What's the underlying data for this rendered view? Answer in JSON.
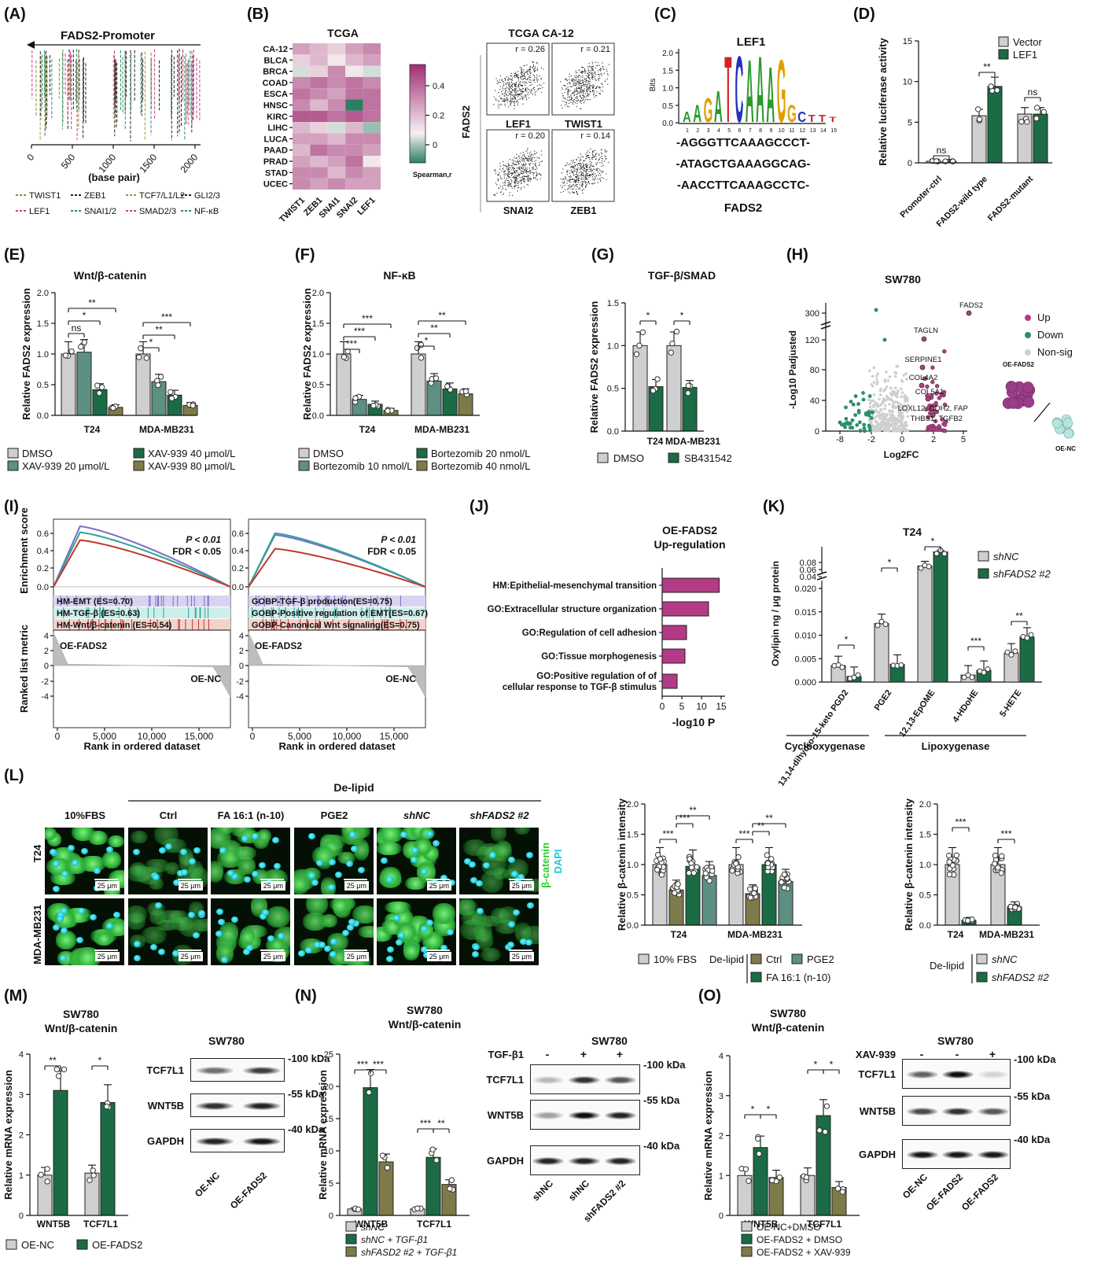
{
  "panels": {
    "A": {
      "letter": "(A)",
      "title": "FADS2-Promoter",
      "xlabel": "(base pair)",
      "ticks": [
        "0",
        "500",
        "1000",
        "1500",
        "2000"
      ],
      "legend": [
        "TWIST1",
        "ZEB1",
        "TCF7/L1/L2",
        "GLI2/3",
        "LEF1",
        "SNAI1/2",
        "SMAD2/3",
        "NF-κB"
      ],
      "legend_colors": [
        "#8a8a3a",
        "#222222",
        "#9b9b3b",
        "#222222",
        "#cc3d8a",
        "#2a8f6b",
        "#cc3d8a",
        "#2a8f6b"
      ]
    },
    "B": {
      "letter": "(B)",
      "heat_title": "TCGA",
      "rows": [
        "CA-12",
        "BLCA",
        "BRCA",
        "COAD",
        "ESCA",
        "HNSC",
        "KIRC",
        "LIHC",
        "LUCA",
        "PAAD",
        "PRAD",
        "STAD",
        "UCEC"
      ],
      "cols": [
        "TWIST1",
        "ZEB1",
        "SNAI1",
        "SNAI2",
        "LEF1"
      ],
      "scale_ticks": [
        "0.4",
        "0.2",
        "0"
      ],
      "scale_label": "Spearman,r",
      "scatter_title": "TCGA CA-12",
      "scatter_ylabel": "FADS2",
      "scatter": [
        {
          "r": "r = 0.26",
          "x": "LEF1"
        },
        {
          "r": "r = 0.21",
          "x": "TWIST1"
        },
        {
          "r": "r = 0.20",
          "x": "SNAI2"
        },
        {
          "r": "r = 0.14",
          "x": "ZEB1"
        }
      ]
    },
    "C": {
      "letter": "(C)",
      "title": "LEF1",
      "ylabel": "Bits",
      "yticks": [
        "2.0",
        "1.5",
        "1.0",
        "0.5",
        "0.0"
      ],
      "positions": [
        "1",
        "2",
        "3",
        "4",
        "5",
        "6",
        "7",
        "8",
        "9",
        "10",
        "11",
        "12",
        "13",
        "14",
        "15"
      ],
      "seqs": [
        "-AGGGTTCAAAGCCCT-",
        "-ATAGCTGAAAGGCAG-",
        "-AACCTTCAAAGCCTC-"
      ],
      "gene": "FADS2"
    },
    "D": {
      "letter": "(D)",
      "ylabel": "Relative luciferase activity",
      "legend": [
        "Vector",
        "LEF1"
      ],
      "sig": [
        "ns",
        "**",
        "ns"
      ]
    },
    "E": {
      "letter": "(E)",
      "title": "Wnt/β-catenin",
      "ylabel": "Relative FADS2 expression",
      "legend": [
        "DMSO",
        "XAV-939 20 μmol/L",
        "XAV-939 40  μmol/L",
        "XAV-939 80  μmol/L"
      ],
      "sig": [
        "**",
        "*",
        "ns",
        "***",
        "**",
        "*"
      ]
    },
    "F": {
      "letter": "(F)",
      "title": "NF-κB",
      "ylabel": "Relative FADS2 expression",
      "legend": [
        "DMSO",
        "Bortezomib 10 nmol/L",
        "Bortezomib 20 nmol/L",
        "Bortezomib 40 nmol/L"
      ],
      "sig": [
        "***",
        "***",
        "***",
        "**",
        "**",
        "*"
      ]
    },
    "G": {
      "letter": "(G)",
      "title": "TGF-β/SMAD",
      "ylabel": "Relative FADS2 expression",
      "legend": [
        "DMSO",
        "SB431542"
      ],
      "sig": [
        "*",
        "*"
      ]
    },
    "H": {
      "letter": "(H)",
      "title": "SW780",
      "xlabel": "Log2FC",
      "ylabel": "-Log10 Padjusted",
      "genes": [
        "FADS2",
        "TAGLN",
        "SERPINE1",
        "COL4A2",
        "COL5A1",
        "LOXL12, CDH2, FAP",
        "THBS1, TGFB2"
      ],
      "legend": [
        "Up",
        "Down",
        "Non-sig"
      ],
      "cond": [
        "OE-FADS2",
        "OE-NC"
      ]
    },
    "I": {
      "letter": "(I)",
      "ylabel_top": "Enrichment score",
      "ylabel_bot": "Ranked list metric",
      "xlabel": "Rank in ordered dataset",
      "p": "P < 0.01",
      "fdr": "FDR < 0.05",
      "pos": "OE-FADS2",
      "neg": "OE-NC",
      "sets1": [
        "HM-EMT (ES=0.70)",
        "HM-TGF-β (ES=0.63)",
        "HM-Wnt/β-catenin (ES=0.54)"
      ],
      "sets2": [
        "GOBP-TGF-β production(ES=0.75)",
        "GOBP-Positive regulation of EMT(ES=0.67)",
        "GOBP-Canonical Wnt signaling(ES=0.75)"
      ],
      "xticks": [
        "0",
        "5,000",
        "10,000",
        "15,000"
      ]
    },
    "J": {
      "letter": "(J)",
      "title1": "OE-FADS2",
      "title2": "Up-regulation",
      "xlabel": "-log10 P",
      "terms": [
        "HM:Epithelial-mesenchymal transition",
        "GO:Extracellular structure organization",
        "GO:Regulation of cell adhesion",
        "GO:Tissue morphogenesis",
        "GO:Positive regulation of of",
        "cellular response to TGF-β stimulus"
      ]
    },
    "K": {
      "letter": "(K)",
      "title": "T24",
      "ylabel": "Oxylipin ng / μg protein",
      "legend": [
        "shNC",
        "shFADS2 #2"
      ],
      "sig": [
        "*",
        "*",
        "*",
        "***",
        "**"
      ],
      "groups": [
        "Cyclooxygenase",
        "Lipoxygenase"
      ]
    },
    "L": {
      "letter": "(L)",
      "delipid": "De-lipid",
      "conds": [
        "10%FBS",
        "Ctrl",
        "FA 16:1 (n-10)",
        "PGE2",
        "shNC",
        "shFADS2 #2"
      ],
      "rows": [
        "T24",
        "MDA-MB231"
      ],
      "scale": "25 μm",
      "stain1": "β-catenin",
      "stain2": "DAPI",
      "ylabel": "Relative β-catenin intensity",
      "legend1": [
        "10% FBS",
        "De-lipid",
        "Ctrl",
        "PGE2",
        "FA 16:1 (n-10)"
      ],
      "legend2": [
        "De-lipid",
        "shNC",
        "shFADS2 #2"
      ],
      "sig1": [
        "***",
        "***",
        "**",
        "***",
        "**",
        "**"
      ],
      "sig2": [
        "***",
        "***"
      ]
    },
    "M": {
      "letter": "(M)",
      "title1": "SW780",
      "title2": "Wnt/β-catenin",
      "ylabel": "Relative mRNA expression",
      "legend": [
        "OE-NC",
        "OE-FADS2"
      ],
      "blot_title": "SW780",
      "blots": [
        "TCF7L1",
        "WNT5B",
        "GAPDH"
      ],
      "kda": [
        "-100 kDa",
        "-55 kDa",
        "-40 kDa"
      ],
      "lanes": [
        "OE-NC",
        "OE-FADS2"
      ],
      "sig": [
        "**",
        "*"
      ]
    },
    "N": {
      "letter": "(N)",
      "title1": "SW780",
      "title2": "Wnt/β-catenin",
      "ylabel": "Relative mRNA expression",
      "legend": [
        "shNC",
        "shNC + TGF-β1",
        "shFASD2 #2 + TGF-β1"
      ],
      "blot_title": "SW780",
      "treat": "TGF-β1",
      "treat_marks": [
        "-",
        "+",
        "+"
      ],
      "blots": [
        "TCF7L1",
        "WNT5B",
        "GAPDH"
      ],
      "kda": [
        "-100 kDa",
        "-55 kDa",
        "-40 kDa"
      ],
      "lanes": [
        "shNC",
        "shNC",
        "shFADS2 #2"
      ],
      "sig": [
        "***",
        "***",
        "***",
        "**"
      ]
    },
    "O": {
      "letter": "(O)",
      "title1": "SW780",
      "title2": "Wnt/β-catenin",
      "ylabel": "Relative mRNA expression",
      "legend": [
        "OE-NC+DMSO",
        "OE-FADS2 + DMSO",
        "OE-FADS2 + XAV-939"
      ],
      "blot_title": "SW780",
      "treat": "XAV-939",
      "treat_marks": [
        "-",
        "-",
        "+"
      ],
      "blots": [
        "TCF7L1",
        "WNT5B",
        "GAPDH"
      ],
      "kda": [
        "-100 kDa",
        "-55 kDa",
        "-40 kDa"
      ],
      "lanes": [
        "OE-NC",
        "OE-FADS2",
        "OE-FADS2"
      ],
      "sig": [
        "*",
        "*",
        "*",
        "*"
      ]
    }
  },
  "colors": {
    "grey": "#cfcfcf",
    "green": "#1e7a50",
    "teal": "#5d8f82",
    "olive": "#7f7a4a",
    "dark": "#1b6b45",
    "purple": "#b33b86",
    "heat_high": "#b0367e",
    "heat_low": "#2a8060"
  },
  "chart_data": [
    {
      "type": "heatmap",
      "panel": "B",
      "title": "TCGA",
      "rows": [
        "CA-12",
        "BLCA",
        "BRCA",
        "COAD",
        "ESCA",
        "HNSC",
        "KIRC",
        "LIHC",
        "LUCA",
        "PAAD",
        "PRAD",
        "STAD",
        "UCEC"
      ],
      "cols": [
        "TWIST1",
        "ZEB1",
        "SNAI1",
        "SNAI2",
        "LEF1"
      ],
      "values": [
        [
          0.25,
          0.2,
          0.15,
          0.25,
          0.3
        ],
        [
          0.15,
          0.2,
          0.1,
          0.2,
          0.25
        ],
        [
          0.05,
          0.15,
          0.3,
          0.1,
          0.05
        ],
        [
          0.3,
          0.35,
          0.3,
          0.35,
          0.3
        ],
        [
          0.35,
          0.3,
          0.25,
          0.35,
          0.35
        ],
        [
          0.3,
          0.2,
          0.3,
          -0.1,
          0.35
        ],
        [
          0.4,
          0.4,
          0.35,
          0.4,
          0.35
        ],
        [
          0.2,
          0.15,
          0.05,
          0.2,
          0.0
        ],
        [
          0.25,
          0.25,
          0.2,
          0.3,
          0.3
        ],
        [
          0.2,
          0.35,
          0.3,
          0.3,
          0.25
        ],
        [
          0.25,
          0.2,
          0.25,
          0.35,
          0.1
        ],
        [
          0.3,
          0.3,
          0.2,
          0.3,
          0.25
        ],
        [
          0.3,
          0.25,
          0.3,
          0.25,
          0.25
        ]
      ],
      "scale_label": "Spearman,r",
      "zlim": [
        -0.1,
        0.5
      ]
    },
    {
      "type": "bar",
      "panel": "D",
      "categories": [
        "Promoter-ctrl",
        "FADS2-wild type",
        "FADS2-mutant"
      ],
      "series": [
        {
          "name": "Vector",
          "values": [
            0.2,
            5.8,
            6.0
          ]
        },
        {
          "name": "LEF1",
          "values": [
            0.2,
            9.4,
            6.0
          ]
        }
      ],
      "ylim": [
        0,
        15
      ],
      "yticks": [
        0,
        5,
        10,
        15
      ],
      "ylabel": "Relative luciferase activity"
    },
    {
      "type": "bar",
      "panel": "E",
      "title": "Wnt/β-catenin",
      "categories": [
        "T24",
        "MDA-MB231"
      ],
      "series": [
        {
          "name": "DMSO",
          "values": [
            1.0,
            1.0
          ]
        },
        {
          "name": "XAV-939 20 μmol/L",
          "values": [
            1.03,
            0.55
          ]
        },
        {
          "name": "XAV-939 40  μmol/L",
          "values": [
            0.42,
            0.33
          ]
        },
        {
          "name": "XAV-939 80  μmol/L",
          "values": [
            0.13,
            0.16
          ]
        }
      ],
      "ylim": [
        0,
        2.0
      ],
      "yticks": [
        0,
        0.5,
        1.0,
        1.5,
        2.0
      ],
      "ylabel": "Relative FADS2 expression"
    },
    {
      "type": "bar",
      "panel": "F",
      "title": "NF-κB",
      "categories": [
        "T24",
        "MDA-MB231"
      ],
      "series": [
        {
          "name": "DMSO",
          "values": [
            1.0,
            1.0
          ]
        },
        {
          "name": "Bortezomib 10 nmol/L",
          "values": [
            0.26,
            0.56
          ]
        },
        {
          "name": "Bortezomib 20 nmol/L",
          "values": [
            0.18,
            0.43
          ]
        },
        {
          "name": "Bortezomib 40 nmol/L",
          "values": [
            0.08,
            0.35
          ]
        }
      ],
      "ylim": [
        0,
        2.0
      ],
      "yticks": [
        0,
        0.5,
        1.0,
        1.5,
        2.0
      ],
      "ylabel": "Relative FADS2 expression"
    },
    {
      "type": "bar",
      "panel": "G",
      "title": "TGF-β/SMAD",
      "categories": [
        "T24",
        "MDA-MB231"
      ],
      "series": [
        {
          "name": "DMSO",
          "values": [
            1.0,
            1.0
          ]
        },
        {
          "name": "SB431542",
          "values": [
            0.52,
            0.51
          ]
        }
      ],
      "ylim": [
        0,
        1.5
      ],
      "yticks": [
        0,
        0.5,
        1.0,
        1.5
      ],
      "ylabel": "Relative FADS2 expression"
    },
    {
      "type": "bar",
      "panel": "J",
      "title": "OE-FADS2 Up-regulation",
      "categories": [
        "HM:Epithelial-mesenchymal transition",
        "GO:Extracellular structure organization",
        "GO:Regulation of cell adhesion",
        "GO:Tissue morphogenesis",
        "GO:Positive regulation of of cellular response to TGF-β stimulus"
      ],
      "values": [
        14.5,
        11.8,
        6.2,
        5.8,
        3.8
      ],
      "xlim": [
        0,
        15
      ],
      "xticks": [
        0,
        5,
        10,
        15
      ],
      "xlabel": "-log10 P"
    },
    {
      "type": "bar",
      "panel": "K",
      "title": "T24",
      "categories": [
        "13,14-dihydro-15-keto PGD2",
        "PGE2",
        "12,13-EpOME",
        "4-HDoHE",
        "5-HETE"
      ],
      "series": [
        {
          "name": "shNC",
          "values": [
            0.0035,
            0.0125,
            0.055,
            0.0015,
            0.0062
          ]
        },
        {
          "name": "shFADS2 #2",
          "values": [
            0.0012,
            0.0038,
            0.075,
            0.0025,
            0.0096
          ]
        }
      ],
      "yticks": [
        0,
        0.005,
        0.01,
        0.015,
        0.02,
        0.04,
        0.06,
        0.08
      ],
      "ylabel": "Oxylipin ng / μg protein"
    },
    {
      "type": "bar",
      "panel": "L-left",
      "categories": [
        "T24",
        "MDA-MB231"
      ],
      "series": [
        {
          "name": "10% FBS",
          "values": [
            1.0,
            1.0
          ]
        },
        {
          "name": "Ctrl",
          "values": [
            0.58,
            0.52
          ]
        },
        {
          "name": "FA 16:1 (n-10)",
          "values": [
            0.97,
            1.0
          ]
        },
        {
          "name": "PGE2",
          "values": [
            0.82,
            0.72
          ]
        }
      ],
      "ylim": [
        0,
        2.0
      ],
      "yticks": [
        0,
        0.5,
        1.0,
        1.5,
        2.0
      ],
      "ylabel": "Relative β-catenin intensity"
    },
    {
      "type": "bar",
      "panel": "L-right",
      "categories": [
        "T24",
        "MDA-MB231"
      ],
      "series": [
        {
          "name": "shNC",
          "values": [
            1.0,
            1.0
          ]
        },
        {
          "name": "shFADS2 #2",
          "values": [
            0.08,
            0.3
          ]
        }
      ],
      "ylim": [
        0,
        2.0
      ],
      "yticks": [
        0,
        0.5,
        1.0,
        1.5,
        2.0
      ],
      "ylabel": "Relative β-catenin intensity"
    },
    {
      "type": "bar",
      "panel": "M",
      "categories": [
        "WNT5B",
        "TCF7L1"
      ],
      "series": [
        {
          "name": "OE-NC",
          "values": [
            1.0,
            1.05
          ]
        },
        {
          "name": "OE-FADS2",
          "values": [
            3.1,
            2.8
          ]
        }
      ],
      "ylim": [
        0,
        4
      ],
      "yticks": [
        0,
        1,
        2,
        3,
        4
      ],
      "ylabel": "Relative mRNA expression"
    },
    {
      "type": "bar",
      "panel": "N",
      "categories": [
        "WNT5B",
        "TCF7L1"
      ],
      "series": [
        {
          "name": "shNC",
          "values": [
            1.0,
            1.0
          ]
        },
        {
          "name": "shNC + TGF-β1",
          "values": [
            19.8,
            9.0
          ]
        },
        {
          "name": "shFASD2 #2 + TGF-β1",
          "values": [
            8.3,
            4.8
          ]
        }
      ],
      "ylim": [
        0,
        25
      ],
      "yticks": [
        0,
        5,
        10,
        15,
        20,
        25
      ],
      "ylabel": "Relative mRNA expression"
    },
    {
      "type": "bar",
      "panel": "O",
      "categories": [
        "WNT5B",
        "TCF7L1"
      ],
      "series": [
        {
          "name": "OE-NC+DMSO",
          "values": [
            1.0,
            1.0
          ]
        },
        {
          "name": "OE-FADS2 + DMSO",
          "values": [
            1.7,
            2.5
          ]
        },
        {
          "name": "OE-FADS2 + XAV-939",
          "values": [
            0.95,
            0.7
          ]
        }
      ],
      "ylim": [
        0,
        4
      ],
      "yticks": [
        0,
        1,
        2,
        3,
        4
      ],
      "ylabel": "Relative mRNA expression"
    }
  ]
}
